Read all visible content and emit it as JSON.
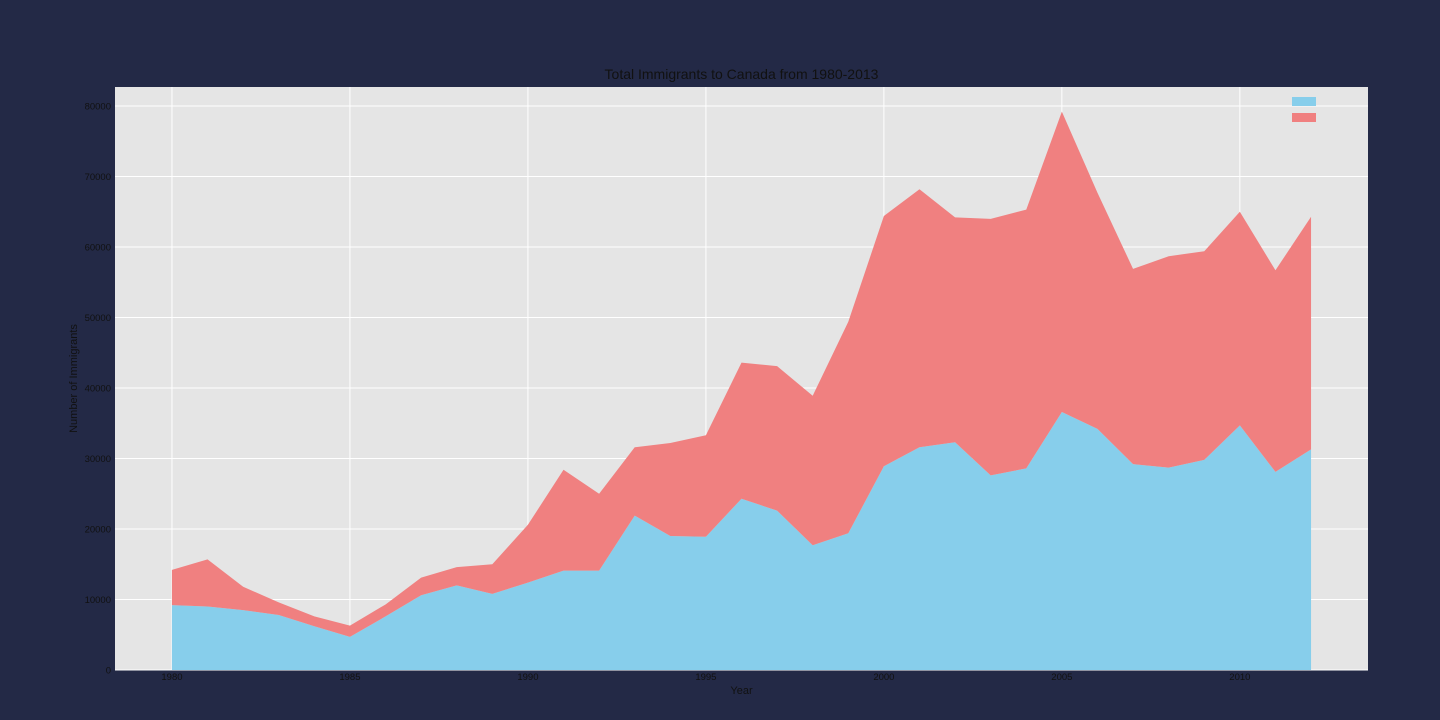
{
  "page": {
    "background": "#232946"
  },
  "chart_data": {
    "type": "area",
    "stacked": true,
    "title": "Total Immigrants to Canada from 1980-2013",
    "xlabel": "Year",
    "ylabel": "Number of Immigrants",
    "x": [
      1980,
      1981,
      1982,
      1983,
      1984,
      1985,
      1986,
      1987,
      1988,
      1989,
      1990,
      1991,
      1992,
      1993,
      1994,
      1995,
      1996,
      1997,
      1998,
      1999,
      2000,
      2001,
      2002,
      2003,
      2004,
      2005,
      2006,
      2007,
      2008,
      2009,
      2010,
      2011,
      2012
    ],
    "series": [
      {
        "color": "#87CEEB",
        "values": [
          9200,
          9000,
          8500,
          7800,
          6200,
          4700,
          7600,
          10600,
          12000,
          10800,
          12400,
          14100,
          14100,
          21900,
          19000,
          18900,
          24300,
          22600,
          17700,
          19400,
          28900,
          31600,
          32300,
          27600,
          28600,
          36600,
          34200,
          29200,
          28700,
          29800,
          34700,
          28100,
          31300
        ]
      },
      {
        "color": "#F08080",
        "values": [
          5000,
          6700,
          3300,
          1800,
          1400,
          1600,
          1700,
          2500,
          2600,
          4200,
          8200,
          14300,
          10900,
          9700,
          13200,
          14400,
          19300,
          20500,
          21200,
          30000,
          35500,
          36600,
          31900,
          36400,
          36700,
          42600,
          33500,
          27700,
          30000,
          29600,
          30300,
          28600,
          33000
        ]
      }
    ],
    "xticks": [
      1980,
      1985,
      1990,
      1995,
      2000,
      2005,
      2010
    ],
    "yticks": [
      0,
      10000,
      20000,
      30000,
      40000,
      50000,
      60000,
      70000,
      80000
    ],
    "xlim": [
      1978.4,
      2013.6
    ],
    "ylim": [
      0,
      82700
    ],
    "grid": true,
    "plot_background": "#E5E5E5",
    "grid_color": "#FFFFFF",
    "legend_position": "top-right"
  }
}
